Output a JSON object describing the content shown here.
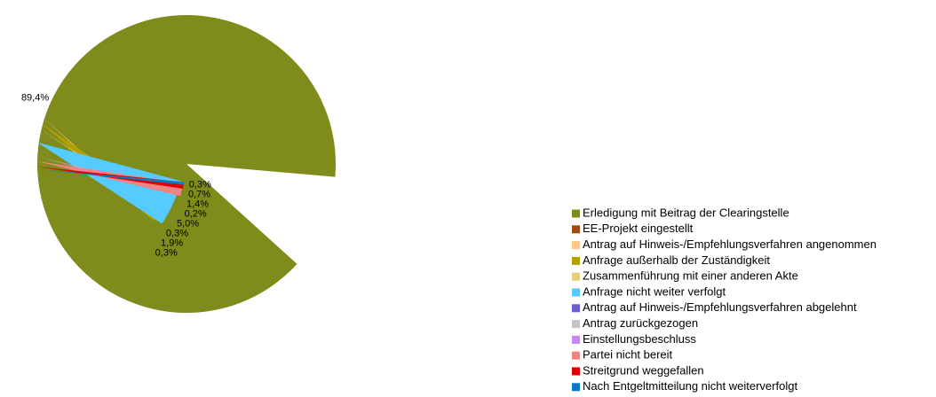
{
  "chart_data": {
    "type": "pie",
    "categories": [
      "Erledigung mit Beitrag der Clearingstelle",
      "EE-Projekt eingestellt",
      "Antrag auf Hinweis-/Empfehlungsverfahren angenommen",
      "Anfrage außerhalb der Zuständigkeit",
      "Zusammenführung mit einer anderen Akte",
      "Anfrage nicht weiter verfolgt",
      "Antrag auf Hinweis-/Empfehlungsverfahren abgelehnt",
      "Antrag zurückgezogen",
      "Einstellungsbeschluss",
      "Partei nicht bereit",
      "Streitgrund weggefallen",
      "Nach Entgeltmitteilung nicht weiterverfolgt"
    ],
    "values": [
      89.4,
      0,
      0.3,
      1.9,
      0.3,
      5.0,
      0,
      0.2,
      0.2,
      1.4,
      0.7,
      0.3
    ],
    "value_labels": [
      "89,4%",
      null,
      "0,3%",
      "1,9%",
      "0,3%",
      "5,0%",
      null,
      "0,2%",
      null,
      "1,4%",
      "0,7%",
      "0,3%"
    ],
    "colors": [
      "#7f8b1a",
      "#9e4a10",
      "#ffc58a",
      "#b3a000",
      "#e8cc78",
      "#55cbff",
      "#6a5fd0",
      "#c4c4c4",
      "#c088f0",
      "#f08484",
      "#e00000",
      "#0a78c2"
    ],
    "legend": "right"
  }
}
